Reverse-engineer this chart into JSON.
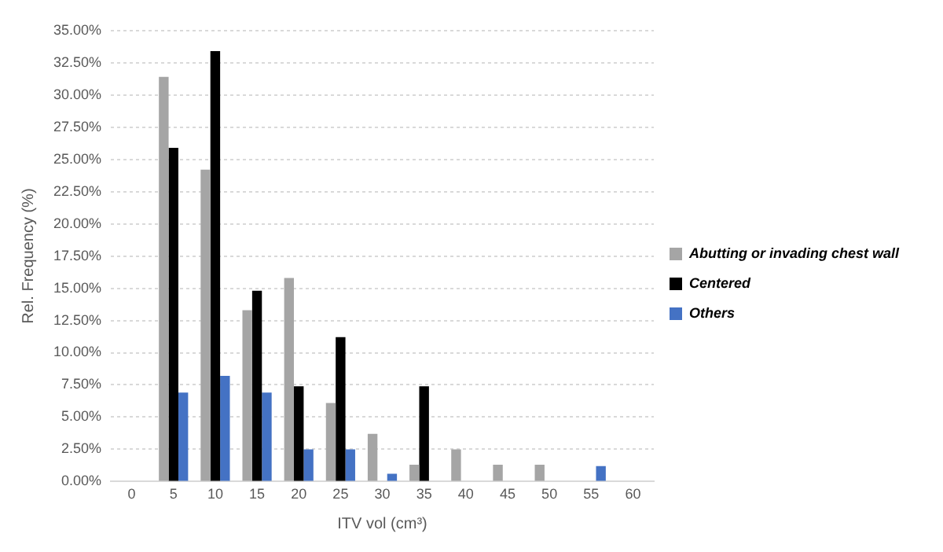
{
  "chart_data": {
    "type": "bar",
    "xlabel": "ITV vol (cm³)",
    "ylabel": "Rel. Frequency (%)",
    "categories": [
      "0",
      "5",
      "10",
      "15",
      "20",
      "25",
      "30",
      "35",
      "40",
      "45",
      "50",
      "55",
      "60"
    ],
    "series": [
      {
        "name": "Abutting or invading chest wall",
        "color": "#a5a5a5",
        "values": [
          0,
          31.4,
          24.2,
          13.3,
          15.8,
          6.1,
          3.7,
          1.3,
          2.5,
          1.3,
          1.3,
          0,
          0
        ]
      },
      {
        "name": "Centered",
        "color": "#000000",
        "values": [
          0,
          25.9,
          33.4,
          14.8,
          7.4,
          11.2,
          0,
          7.4,
          0,
          0,
          0,
          0,
          0
        ]
      },
      {
        "name": "Others",
        "color": "#4472c4",
        "values": [
          0,
          6.9,
          8.2,
          6.9,
          2.5,
          2.5,
          0.6,
          0,
          0,
          0,
          0,
          1.2,
          0
        ]
      }
    ],
    "ylim": [
      0,
      35
    ],
    "yticks": [
      {
        "value": 0,
        "label": "0.00%"
      },
      {
        "value": 2.5,
        "label": "2.50%"
      },
      {
        "value": 5,
        "label": "5.00%"
      },
      {
        "value": 7.5,
        "label": "7.50%"
      },
      {
        "value": 10,
        "label": "10.00%"
      },
      {
        "value": 12.5,
        "label": "12.50%"
      },
      {
        "value": 15,
        "label": "15.00%"
      },
      {
        "value": 17.5,
        "label": "17.50%"
      },
      {
        "value": 20,
        "label": "20.00%"
      },
      {
        "value": 22.5,
        "label": "22.50%"
      },
      {
        "value": 25,
        "label": "25.00%"
      },
      {
        "value": 27.5,
        "label": "27.50%"
      },
      {
        "value": 30,
        "label": "30.00%"
      },
      {
        "value": 32.5,
        "label": "32.50%"
      },
      {
        "value": 35,
        "label": "35.00%"
      }
    ],
    "grid": "y",
    "legend": "right"
  }
}
